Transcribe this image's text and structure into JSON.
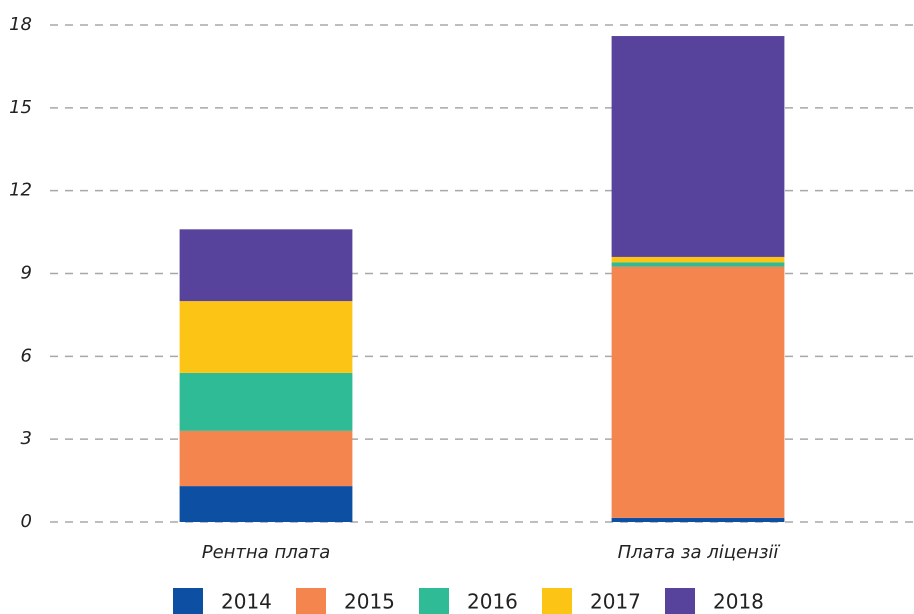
{
  "chart_data": {
    "type": "stacked_bar",
    "categories": [
      "Рентна плата",
      "Плата за ліцензії"
    ],
    "series": [
      {
        "name": "2014",
        "color": "#0d4fa3",
        "values": [
          1.3,
          0.15
        ]
      },
      {
        "name": "2015",
        "color": "#f4854f",
        "values": [
          2.0,
          9.1
        ]
      },
      {
        "name": "2016",
        "color": "#2fbb95",
        "values": [
          2.1,
          0.15
        ]
      },
      {
        "name": "2017",
        "color": "#fcc516",
        "values": [
          2.6,
          0.2
        ]
      },
      {
        "name": "2018",
        "color": "#57439b",
        "values": [
          2.6,
          8.0
        ]
      }
    ],
    "ylim": [
      0,
      18
    ],
    "yticks": [
      0,
      3,
      6,
      9,
      12,
      15,
      18
    ],
    "grid": true,
    "legend": "bottom"
  }
}
